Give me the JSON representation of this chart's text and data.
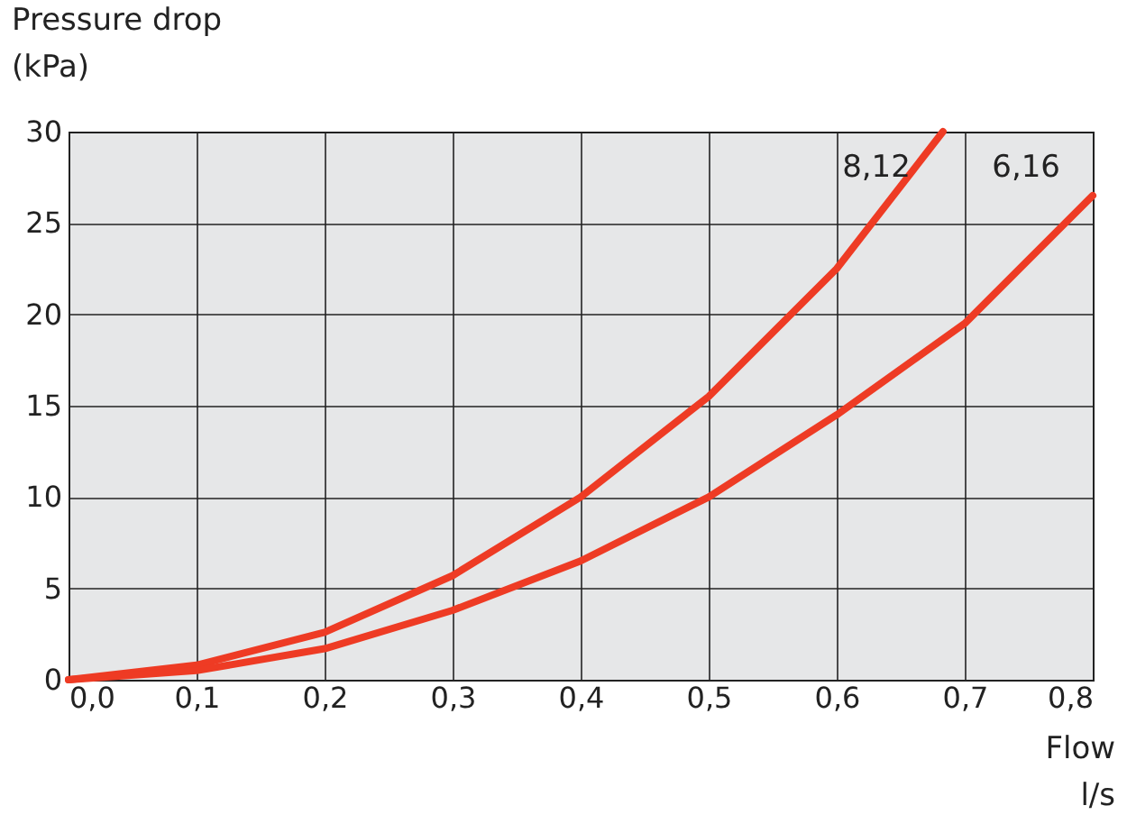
{
  "chart_data": {
    "type": "line",
    "xlabel": "Flow\nl/s",
    "ylabel": "Pressure drop\n(kPa)",
    "xlim": [
      0,
      0.8
    ],
    "ylim": [
      0,
      30
    ],
    "xticks": [
      {
        "value": 0,
        "label": "0,0"
      },
      {
        "value": 0.1,
        "label": "0,1"
      },
      {
        "value": 0.2,
        "label": "0,2"
      },
      {
        "value": 0.3,
        "label": "0,3"
      },
      {
        "value": 0.4,
        "label": "0,4"
      },
      {
        "value": 0.5,
        "label": "0,5"
      },
      {
        "value": 0.6,
        "label": "0,6"
      },
      {
        "value": 0.7,
        "label": "0,7"
      },
      {
        "value": 0.8,
        "label": "0,8"
      }
    ],
    "yticks": [
      0,
      5,
      10,
      15,
      20,
      25,
      30
    ],
    "grid": true,
    "legend": false,
    "marker": "none",
    "line_style": "solid",
    "series": [
      {
        "name": "8,12",
        "color": "#ee3b24",
        "x": [
          0,
          0.1,
          0.2,
          0.3,
          0.4,
          0.5,
          0.6,
          0.683
        ],
        "values": [
          0,
          0.8,
          2.6,
          5.7,
          10,
          15.5,
          22.5,
          30
        ]
      },
      {
        "name": "6,16",
        "color": "#ee3b24",
        "x": [
          0,
          0.1,
          0.2,
          0.3,
          0.4,
          0.5,
          0.6,
          0.7,
          0.8
        ],
        "values": [
          0,
          0.5,
          1.7,
          3.8,
          6.5,
          10,
          14.5,
          19.5,
          26.5
        ]
      }
    ]
  }
}
